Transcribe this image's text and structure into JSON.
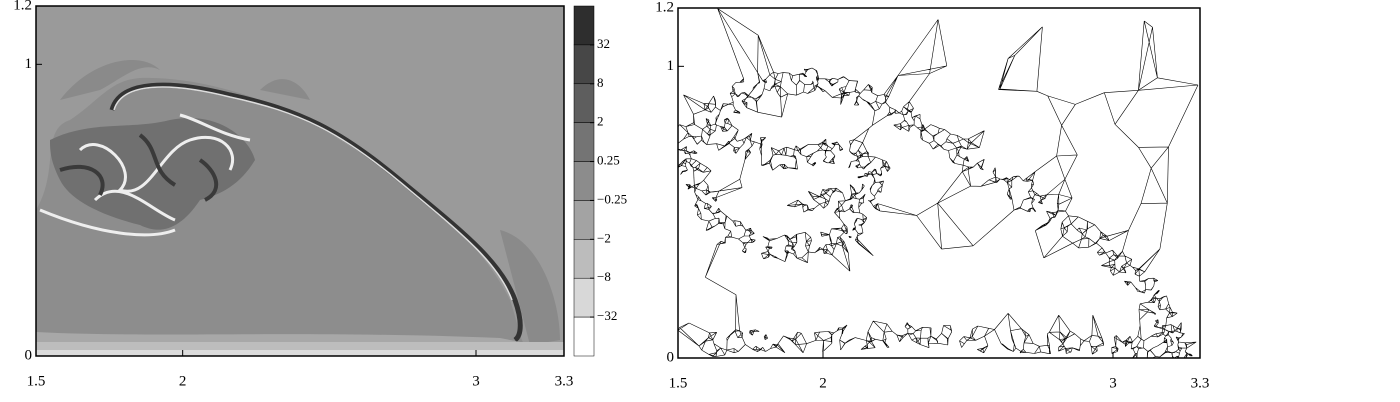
{
  "chart_data": [
    {
      "type": "contour",
      "xlim": [
        1.5,
        3.3
      ],
      "ylim": [
        0,
        1.2
      ],
      "xticks": [
        1.5,
        2,
        3,
        3.3
      ],
      "yticks": [
        0,
        1,
        1.2
      ],
      "colorbar": {
        "ticks": [
          32,
          8,
          2,
          0.25,
          {
            "value": -0.25,
            "label": "−0.25"
          },
          {
            "value": -2,
            "label": "−2"
          },
          {
            "value": -8,
            "label": "−8"
          },
          {
            "value": -32,
            "label": "−32"
          }
        ],
        "colors": [
          "#2e2e2e",
          "#474747",
          "#5e5e5e",
          "#747474",
          "#8c8c8c",
          "#a3a3a3",
          "#bcbcbc",
          "#d8d8d8",
          "#ffffff"
        ]
      }
    },
    {
      "type": "mesh",
      "xlim": [
        1.5,
        3.3
      ],
      "ylim": [
        0,
        1.2
      ],
      "xticks": [
        1.5,
        2,
        3,
        3.3
      ],
      "yticks": [
        0,
        1,
        1.2
      ]
    }
  ]
}
